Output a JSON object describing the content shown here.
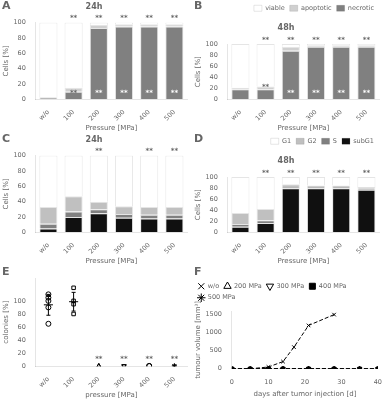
{
  "chart_data": [
    {
      "type": "bar",
      "stacked": true,
      "title": "24h",
      "categories": [
        "w/o",
        "100",
        "200",
        "300",
        "400",
        "500"
      ],
      "series": [
        {
          "color": "#808080",
          "values": [
            2,
            10,
            93,
            95,
            95,
            95
          ]
        },
        {
          "color": "#d0d0d0",
          "values": [
            1,
            5,
            4,
            3,
            3,
            3
          ]
        },
        {
          "color": "#ffffff",
          "values": [
            97,
            85,
            3,
            2,
            2,
            2
          ]
        }
      ],
      "xlabel": "Pressure [MPa]",
      "ylabel": "Cells [%]",
      "ylim": [
        0,
        100
      ],
      "yticks": [
        0,
        20,
        40,
        60,
        80,
        100
      ],
      "grid": false,
      "annotations": [
        {
          "text": "A"
        },
        {
          "text": "**",
          "x": "100",
          "y": 101.5
        },
        {
          "text": "**",
          "x": "200",
          "y": 101.5
        },
        {
          "text": "**",
          "x": "300",
          "y": 101.5
        },
        {
          "text": "**",
          "x": "400",
          "y": 101.5
        },
        {
          "text": "**",
          "x": "500",
          "y": 101.5
        },
        {
          "text": "**",
          "x": "200",
          "y": 4,
          "color": "#ffffff"
        },
        {
          "text": "**",
          "x": "300",
          "y": 4,
          "color": "#ffffff"
        },
        {
          "text": "**",
          "x": "400",
          "y": 4,
          "color": "#ffffff"
        },
        {
          "text": "**",
          "x": "500",
          "y": 4,
          "color": "#ffffff"
        },
        {
          "text": "**",
          "x": "100",
          "y": 4
        }
      ]
    },
    {
      "type": "bar",
      "stacked": true,
      "title": "48h",
      "categories": [
        "w/o",
        "100",
        "200",
        "300",
        "400",
        "500"
      ],
      "series": [
        {
          "name": "necrotic",
          "color": "#808080",
          "values": [
            18,
            18,
            88,
            95,
            95,
            95
          ]
        },
        {
          "name": "apoptotic",
          "color": "#d0d0d0",
          "values": [
            3,
            5,
            7,
            3,
            3,
            3
          ]
        },
        {
          "name": "viable",
          "color": "#ffffff",
          "values": [
            79,
            77,
            5,
            2,
            2,
            2
          ]
        }
      ],
      "xlabel": "Pressure [MPa]",
      "ylabel": "Cells [%]",
      "ylim": [
        0,
        100
      ],
      "yticks": [
        0,
        20,
        40,
        60,
        80,
        100
      ],
      "grid": false,
      "legend": "upper right",
      "annotations": [
        {
          "text": "B"
        },
        {
          "text": "**",
          "x": "100",
          "y": 101.5
        },
        {
          "text": "**",
          "x": "200",
          "y": 101.5
        },
        {
          "text": "**",
          "x": "300",
          "y": 101.5
        },
        {
          "text": "**",
          "x": "400",
          "y": 101.5
        },
        {
          "text": "**",
          "x": "500",
          "y": 101.5
        },
        {
          "text": "**",
          "x": "100",
          "y": 15
        },
        {
          "text": "**",
          "x": "200",
          "y": 4,
          "color": "#ffffff"
        },
        {
          "text": "**",
          "x": "300",
          "y": 4,
          "color": "#ffffff"
        },
        {
          "text": "**",
          "x": "400",
          "y": 4,
          "color": "#ffffff"
        },
        {
          "text": "**",
          "x": "500",
          "y": 4,
          "color": "#ffffff"
        }
      ]
    },
    {
      "type": "bar",
      "stacked": true,
      "title": "24h",
      "categories": [
        "w/o",
        "100",
        "200",
        "300",
        "400",
        "500"
      ],
      "series": [
        {
          "color": "#101010",
          "values": [
            5,
            20,
            25,
            19,
            18,
            18
          ]
        },
        {
          "color": "#808080",
          "values": [
            6,
            7,
            5,
            5,
            5,
            5
          ]
        },
        {
          "color": "#c0c0c0",
          "values": [
            22,
            20,
            10,
            10,
            10,
            10
          ]
        },
        {
          "color": "#ffffff",
          "values": [
            67,
            53,
            60,
            66,
            67,
            67
          ]
        }
      ],
      "xlabel": "Pressure [MPa]",
      "ylabel": "Cells [%]",
      "ylim": [
        0,
        100
      ],
      "yticks": [
        0,
        20,
        40,
        60,
        80,
        100
      ],
      "grid": false,
      "annotations": [
        {
          "text": "C"
        },
        {
          "text": "**",
          "x": "200",
          "y": 101.5
        },
        {
          "text": "**",
          "x": "400",
          "y": 101.5
        },
        {
          "text": "**",
          "x": "500",
          "y": 101.5
        }
      ]
    },
    {
      "type": "bar",
      "stacked": true,
      "title": "48h",
      "categories": [
        "w/o",
        "100",
        "200",
        "300",
        "400",
        "500"
      ],
      "series": [
        {
          "name": "subG1",
          "color": "#101010",
          "values": [
            10,
            17,
            80,
            80,
            80,
            77
          ]
        },
        {
          "name": "S",
          "color": "#808080",
          "values": [
            5,
            5,
            2,
            2,
            2,
            2
          ]
        },
        {
          "name": "G2",
          "color": "#c0c0c0",
          "values": [
            20,
            20,
            5,
            3,
            3,
            3
          ]
        },
        {
          "name": "G1",
          "color": "#ffffff",
          "values": [
            65,
            58,
            13,
            15,
            15,
            18
          ]
        }
      ],
      "xlabel": "Pressure [MPa]",
      "ylabel": "Cells [%]",
      "ylim": [
        0,
        100
      ],
      "yticks": [
        0,
        20,
        40,
        60,
        80,
        100
      ],
      "grid": false,
      "legend": "upper right",
      "annotations": [
        {
          "text": "D"
        },
        {
          "text": "**",
          "x": "100",
          "y": 101.5
        },
        {
          "text": "**",
          "x": "200",
          "y": 101.5
        },
        {
          "text": "**",
          "x": "300",
          "y": 101.5
        },
        {
          "text": "**",
          "x": "400",
          "y": 101.5
        },
        {
          "text": "**",
          "x": "500",
          "y": 101.5
        }
      ]
    },
    {
      "type": "scatter",
      "categories": [
        "w/o",
        "100",
        "200",
        "300",
        "400",
        "500"
      ],
      "series": [
        {
          "x": [
            "w/o",
            "w/o",
            "w/o",
            "w/o",
            "w/o"
          ],
          "values": [
            65,
            90,
            100,
            105,
            110
          ],
          "marker": "circle_open",
          "color": "#000000",
          "mean": 94,
          "std": 15.937377
        },
        {
          "x": [
            "100",
            "100",
            "100",
            "100"
          ],
          "values": [
            80,
            95,
            100,
            120
          ],
          "marker": "square_open",
          "color": "#000000",
          "mean": 98.75,
          "std": 14.306904
        },
        {
          "x": [
            "200",
            "200"
          ],
          "values": [
            0.5,
            0.5
          ],
          "marker": "triangle_up_open",
          "color": "#000000"
        },
        {
          "x": [
            "300",
            "300"
          ],
          "values": [
            0.5,
            0.5
          ],
          "marker": "triangle_down_open",
          "color": "#000000"
        },
        {
          "x": [
            "400",
            "400"
          ],
          "values": [
            0.5,
            0.5
          ],
          "marker": "circle_open",
          "color": "#000000"
        },
        {
          "x": [
            "500",
            "500"
          ],
          "values": [
            0.5,
            0.5
          ],
          "marker": "star_open",
          "color": "#000000"
        }
      ],
      "xlabel": "pressure [MPa]",
      "ylabel": "colonies [%]",
      "ylim": [
        0,
        135
      ],
      "yticks": [
        0,
        20,
        40,
        60,
        80,
        100
      ],
      "grid": false,
      "annotations": [
        {
          "text": "E"
        },
        {
          "text": "**",
          "x": "200",
          "y": 6
        },
        {
          "text": "**",
          "x": "300",
          "y": 6
        },
        {
          "text": "**",
          "x": "400",
          "y": 6
        },
        {
          "text": "**",
          "x": "500",
          "y": 6
        }
      ]
    },
    {
      "type": "line",
      "series": [
        {
          "name": "w/o",
          "x": [
            0,
            5,
            10,
            14,
            17,
            21,
            28
          ],
          "values": [
            0,
            0,
            50,
            200,
            600,
            1200,
            1500
          ],
          "marker": "x",
          "line_style": "dashed",
          "color": "#000000"
        },
        {
          "name": "200 MPa",
          "x": [
            0,
            5,
            10,
            14,
            21,
            28,
            35,
            40
          ],
          "values": [
            0,
            0,
            3,
            5,
            8,
            3,
            0,
            0
          ],
          "marker": "triangle_up_open",
          "line_style": "dashed",
          "color": "#000000"
        },
        {
          "name": "300 MPa",
          "x": [
            0,
            5,
            10,
            14,
            21,
            28,
            35,
            40
          ],
          "values": [
            0,
            0,
            2,
            3,
            3,
            0,
            0,
            0
          ],
          "marker": "triangle_down_open",
          "line_style": "dashed",
          "color": "#000000"
        },
        {
          "name": "400 MPa",
          "x": [
            0,
            5,
            10,
            14,
            21,
            28,
            35,
            40
          ],
          "values": [
            0,
            0,
            0,
            0,
            0,
            0,
            0,
            0
          ],
          "marker": "square_filled",
          "line_style": "dashed",
          "color": "#000000"
        },
        {
          "name": "500 MPa",
          "x": [
            0,
            5,
            10,
            14,
            21,
            28,
            35,
            40
          ],
          "values": [
            0,
            0,
            0,
            0,
            0,
            0,
            0,
            0
          ],
          "marker": "star_filled",
          "line_style": "dashed",
          "color": "#000000"
        }
      ],
      "xlabel": "days after tumor injection [d]",
      "ylabel": "tumour volume [mm³]",
      "xlim": [
        0,
        40
      ],
      "xticks": [
        0,
        10,
        20,
        30,
        40
      ],
      "ylim": [
        0,
        1600
      ],
      "yticks": [
        0,
        500,
        1000,
        1500
      ],
      "grid": false,
      "legend": "upper left",
      "annotations": [
        {
          "text": "F"
        }
      ]
    }
  ]
}
